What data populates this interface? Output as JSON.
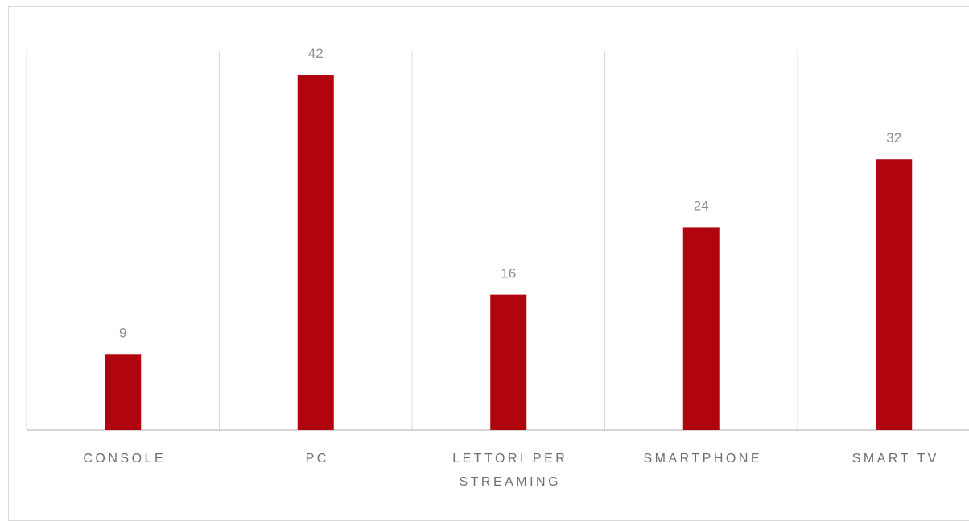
{
  "chart_data": {
    "type": "bar",
    "categories": [
      "CONSOLE",
      "PC",
      "LETTORI PER STREAMING",
      "SMARTPHONE",
      "SMART TV"
    ],
    "category_lines": [
      [
        "CONSOLE"
      ],
      [
        "PC"
      ],
      [
        "LETTORI PER",
        "STREAMING"
      ],
      [
        "SMARTPHONE"
      ],
      [
        "SMART TV"
      ]
    ],
    "values": [
      9,
      42,
      16,
      24,
      32
    ],
    "data_labels": [
      "9",
      "42",
      "16",
      "24",
      "32"
    ],
    "title": "",
    "xlabel": "",
    "ylabel": "",
    "ylim": [
      0,
      45
    ],
    "bar_color": "#b0040f",
    "grid": "vertical category separators",
    "legend": "none"
  }
}
